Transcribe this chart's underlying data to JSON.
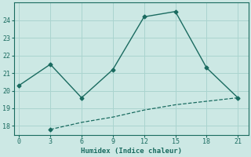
{
  "xlabel": "Humidex (Indice chaleur)",
  "bg_color": "#cce8e4",
  "grid_color": "#aad4cf",
  "line_color": "#1a6b60",
  "line1_x": [
    0,
    3,
    6,
    9,
    12,
    15,
    18,
    21
  ],
  "line1_y": [
    20.3,
    21.5,
    19.6,
    21.2,
    24.2,
    24.5,
    21.3,
    19.6
  ],
  "line2_x": [
    3,
    6,
    9,
    12,
    15,
    18,
    21
  ],
  "line2_y": [
    17.8,
    18.2,
    18.5,
    18.9,
    19.2,
    19.4,
    19.6
  ],
  "xlim": [
    -0.5,
    22
  ],
  "ylim": [
    17.5,
    25.0
  ],
  "xticks": [
    0,
    3,
    6,
    9,
    12,
    15,
    18,
    21
  ],
  "yticks": [
    18,
    19,
    20,
    21,
    22,
    23,
    24
  ]
}
